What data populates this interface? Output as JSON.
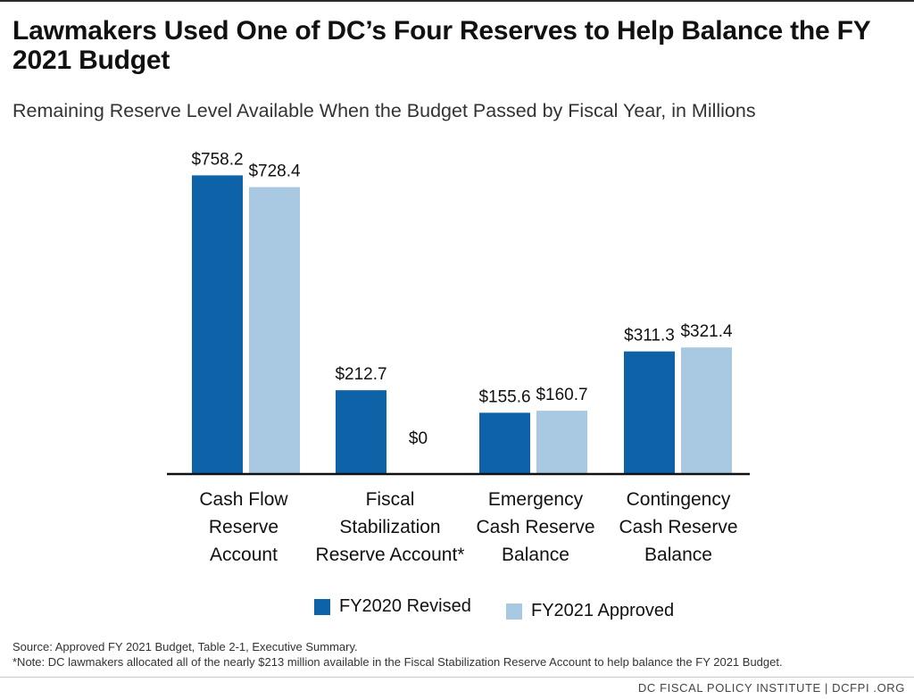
{
  "header": {
    "title": "Lawmakers Used One of DC’s Four Reserves to Help Balance the FY 2021 Budget",
    "subtitle": "Remaining Reserve Level Available When the Budget Passed by Fiscal Year, in Millions"
  },
  "colors": {
    "fy2020": "#0e62a8",
    "fy2021": "#a9c8e2",
    "axis": "#111111"
  },
  "chart_data": {
    "type": "bar",
    "title": "Lawmakers Used One of DC’s Four Reserves to Help Balance the FY 2021 Budget",
    "subtitle": "Remaining Reserve Level Available When the Budget Passed by Fiscal Year, in Millions",
    "categories": [
      "Cash Flow\nReserve\nAccount",
      "Fiscal\nStabilization\nReserve Account*",
      "Emergency\nCash Reserve\nBalance",
      "Contingency\nCash Reserve\nBalance"
    ],
    "series": [
      {
        "name": "FY2020 Revised",
        "values": [
          758.2,
          212.7,
          155.6,
          311.3
        ],
        "labels": [
          "$758.2",
          "$212.7",
          "$155.6",
          "$311.3"
        ]
      },
      {
        "name": "FY2021 Approved",
        "values": [
          728.4,
          0,
          160.7,
          321.4
        ],
        "labels": [
          "$728.4",
          "$0",
          "$160.7",
          "$321.4"
        ]
      }
    ],
    "ylim": [
      0,
      800
    ],
    "grid": false,
    "legend_position": "bottom"
  },
  "legend": {
    "items": [
      "FY2020 Revised",
      "FY2021 Approved"
    ]
  },
  "notes": {
    "source": "Source: Approved FY 2021 Budget, Table 2-1, Executive Summary.",
    "note": "*Note: DC lawmakers allocated all of the nearly $213 million available in the Fiscal Stabilization Reserve Account to help balance the FY 2021 Budget."
  },
  "footer": {
    "text": "DC FISCAL POLICY INSTITUTE  |  DCFPI .ORG"
  }
}
